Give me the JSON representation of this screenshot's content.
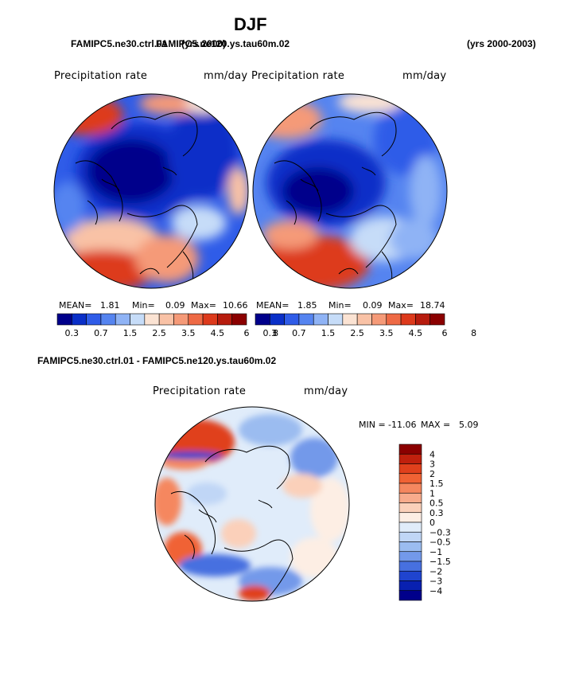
{
  "figure": {
    "title": "DJF",
    "left_case": "FAMIPC5.ne30.ctrl.01",
    "overlap_text": "FAMIPC5.ne120.ys.tau60m.02",
    "left_years": "(yrs 2000)",
    "right_years": "(yrs 2000-2003)",
    "diff_title": "FAMIPC5.ne30.ctrl.01 - FAMIPC5.ne120.ys.tau60m.02"
  },
  "panels": [
    {
      "variable": "Precipitation rate",
      "units": "mm/day",
      "mean_label": "MEAN=",
      "mean": "1.81",
      "min_label": "Min=",
      "min": "0.09",
      "max_label": "Max=",
      "max": "10.66"
    },
    {
      "variable": "Precipitation rate",
      "units": "mm/day",
      "mean_label": "MEAN=",
      "mean": "1.85",
      "min_label": "Min=",
      "min": "0.09",
      "max_label": "Max=",
      "max": "18.74"
    }
  ],
  "diff_panel": {
    "variable": "Precipitation rate",
    "units": "mm/day",
    "min_label": "MIN =",
    "min": "-11.06",
    "max_label": "MAX =",
    "max": "5.09"
  },
  "chart_data": [
    {
      "type": "heatmap",
      "projection": "north-polar-stereographic",
      "colorbar_ticks": [
        "0.3",
        "0.7",
        "1.5",
        "2.5",
        "3.5",
        "4.5",
        "6",
        "8"
      ],
      "colorbar_colors": [
        "#00008b",
        "#0a2fc8",
        "#2f5ce8",
        "#5584f0",
        "#8fb3f5",
        "#c6dcf8",
        "#fbe3d3",
        "#f9c2a6",
        "#f59a78",
        "#ee6a45",
        "#dd3a1c",
        "#b71c0e",
        "#8b0000"
      ]
    },
    {
      "type": "heatmap",
      "projection": "north-polar-stereographic",
      "colorbar_ticks": [
        "0.3",
        "0.7",
        "1.5",
        "2.5",
        "3.5",
        "4.5",
        "6",
        "8"
      ],
      "colorbar_colors": [
        "#00008b",
        "#0a2fc8",
        "#2f5ce8",
        "#5584f0",
        "#8fb3f5",
        "#c6dcf8",
        "#fbe3d3",
        "#f9c2a6",
        "#f59a78",
        "#ee6a45",
        "#dd3a1c",
        "#b71c0e",
        "#8b0000"
      ]
    },
    {
      "type": "heatmap",
      "projection": "north-polar-stereographic",
      "colorbar_ticks": [
        "4",
        "3",
        "2",
        "1.5",
        "1",
        "0.5",
        "0.3",
        "0",
        "−0.3",
        "−0.5",
        "−1",
        "−1.5",
        "−2",
        "−3",
        "−4"
      ],
      "colorbar_colors": [
        "#8b0000",
        "#c0200d",
        "#e0401c",
        "#f06234",
        "#f5875f",
        "#f8ab8c",
        "#fbd0ba",
        "#fdeee4",
        "#e0ecfa",
        "#c0d6f6",
        "#9bbcf0",
        "#7399ea",
        "#4770e0",
        "#1f44cf",
        "#0820b0",
        "#00008b"
      ]
    }
  ]
}
